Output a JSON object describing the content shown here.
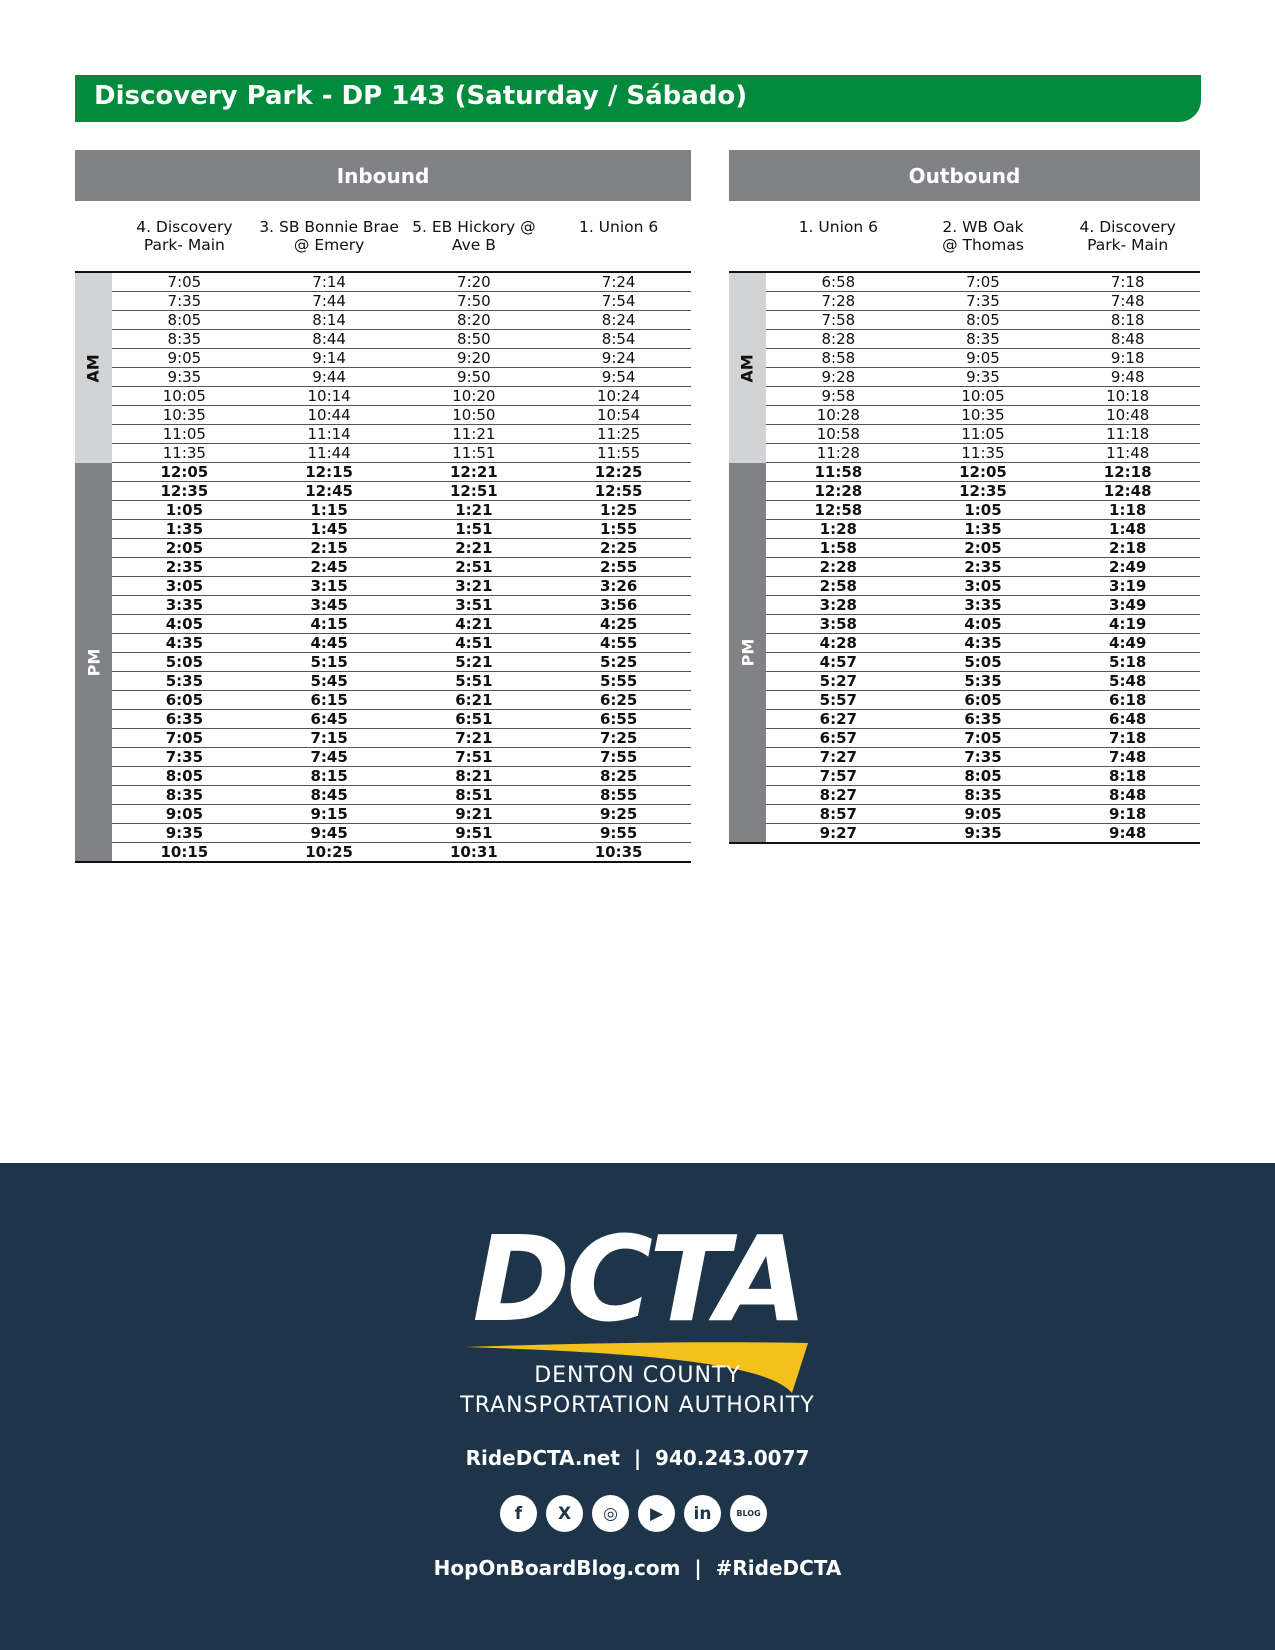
{
  "title": "Discovery Park - DP 143 (Saturday / Sábado)",
  "inbound": {
    "header": "Inbound",
    "columns": [
      "4. Discovery\nPark- Main",
      "3. SB Bonnie Brae\n@ Emery",
      "5. EB Hickory @\nAve B",
      "1. Union 6"
    ],
    "am_label": "AM",
    "pm_label": "PM",
    "am_rows": [
      [
        "7:05",
        "7:14",
        "7:20",
        "7:24"
      ],
      [
        "7:35",
        "7:44",
        "7:50",
        "7:54"
      ],
      [
        "8:05",
        "8:14",
        "8:20",
        "8:24"
      ],
      [
        "8:35",
        "8:44",
        "8:50",
        "8:54"
      ],
      [
        "9:05",
        "9:14",
        "9:20",
        "9:24"
      ],
      [
        "9:35",
        "9:44",
        "9:50",
        "9:54"
      ],
      [
        "10:05",
        "10:14",
        "10:20",
        "10:24"
      ],
      [
        "10:35",
        "10:44",
        "10:50",
        "10:54"
      ],
      [
        "11:05",
        "11:14",
        "11:21",
        "11:25"
      ],
      [
        "11:35",
        "11:44",
        "11:51",
        "11:55"
      ]
    ],
    "pm_rows": [
      [
        "12:05",
        "12:15",
        "12:21",
        "12:25"
      ],
      [
        "12:35",
        "12:45",
        "12:51",
        "12:55"
      ],
      [
        "1:05",
        "1:15",
        "1:21",
        "1:25"
      ],
      [
        "1:35",
        "1:45",
        "1:51",
        "1:55"
      ],
      [
        "2:05",
        "2:15",
        "2:21",
        "2:25"
      ],
      [
        "2:35",
        "2:45",
        "2:51",
        "2:55"
      ],
      [
        "3:05",
        "3:15",
        "3:21",
        "3:26"
      ],
      [
        "3:35",
        "3:45",
        "3:51",
        "3:56"
      ],
      [
        "4:05",
        "4:15",
        "4:21",
        "4:25"
      ],
      [
        "4:35",
        "4:45",
        "4:51",
        "4:55"
      ],
      [
        "5:05",
        "5:15",
        "5:21",
        "5:25"
      ],
      [
        "5:35",
        "5:45",
        "5:51",
        "5:55"
      ],
      [
        "6:05",
        "6:15",
        "6:21",
        "6:25"
      ],
      [
        "6:35",
        "6:45",
        "6:51",
        "6:55"
      ],
      [
        "7:05",
        "7:15",
        "7:21",
        "7:25"
      ],
      [
        "7:35",
        "7:45",
        "7:51",
        "7:55"
      ],
      [
        "8:05",
        "8:15",
        "8:21",
        "8:25"
      ],
      [
        "8:35",
        "8:45",
        "8:51",
        "8:55"
      ],
      [
        "9:05",
        "9:15",
        "9:21",
        "9:25"
      ],
      [
        "9:35",
        "9:45",
        "9:51",
        "9:55"
      ],
      [
        "10:15",
        "10:25",
        "10:31",
        "10:35"
      ]
    ],
    "pm_bold_from": 0
  },
  "outbound": {
    "header": "Outbound",
    "columns": [
      "1. Union 6",
      "2. WB Oak\n@ Thomas",
      "4. Discovery\nPark- Main"
    ],
    "am_label": "AM",
    "pm_label": "PM",
    "am_rows": [
      [
        "6:58",
        "7:05",
        "7:18"
      ],
      [
        "7:28",
        "7:35",
        "7:48"
      ],
      [
        "7:58",
        "8:05",
        "8:18"
      ],
      [
        "8:28",
        "8:35",
        "8:48"
      ],
      [
        "8:58",
        "9:05",
        "9:18"
      ],
      [
        "9:28",
        "9:35",
        "9:48"
      ],
      [
        "9:58",
        "10:05",
        "10:18"
      ],
      [
        "10:28",
        "10:35",
        "10:48"
      ],
      [
        "10:58",
        "11:05",
        "11:18"
      ],
      [
        "11:28",
        "11:35",
        "11:48"
      ]
    ],
    "pm_rows": [
      [
        "11:58",
        "12:05",
        "12:18"
      ],
      [
        "12:28",
        "12:35",
        "12:48"
      ],
      [
        "12:58",
        "1:05",
        "1:18"
      ],
      [
        "1:28",
        "1:35",
        "1:48"
      ],
      [
        "1:58",
        "2:05",
        "2:18"
      ],
      [
        "2:28",
        "2:35",
        "2:49"
      ],
      [
        "2:58",
        "3:05",
        "3:19"
      ],
      [
        "3:28",
        "3:35",
        "3:49"
      ],
      [
        "3:58",
        "4:05",
        "4:19"
      ],
      [
        "4:28",
        "4:35",
        "4:49"
      ],
      [
        "4:57",
        "5:05",
        "5:18"
      ],
      [
        "5:27",
        "5:35",
        "5:48"
      ],
      [
        "5:57",
        "6:05",
        "6:18"
      ],
      [
        "6:27",
        "6:35",
        "6:48"
      ],
      [
        "6:57",
        "7:05",
        "7:18"
      ],
      [
        "7:27",
        "7:35",
        "7:48"
      ],
      [
        "7:57",
        "8:05",
        "8:18"
      ],
      [
        "8:27",
        "8:35",
        "8:48"
      ],
      [
        "8:57",
        "9:05",
        "9:18"
      ],
      [
        "9:27",
        "9:35",
        "9:48"
      ]
    ]
  },
  "footer": {
    "logo_text": "DCTA",
    "org_line1": "DENTON COUNTY",
    "org_line2": "TRANSPORTATION AUTHORITY",
    "contact": "RideDCTA.net  |  940.243.0077",
    "socials": [
      {
        "name": "facebook-icon",
        "glyph": "f"
      },
      {
        "name": "x-icon",
        "glyph": "X"
      },
      {
        "name": "instagram-icon",
        "glyph": "◎"
      },
      {
        "name": "youtube-icon",
        "glyph": "▶"
      },
      {
        "name": "linkedin-icon",
        "glyph": "in"
      },
      {
        "name": "blog-icon",
        "glyph": "BLOG"
      }
    ],
    "blog_line": "HopOnBoardBlog.com  |  #RideDCTA"
  },
  "colors": {
    "title_green": "#028a3d",
    "header_gray": "#808285",
    "am_gray": "#d1d3d4",
    "footer_navy": "#1e3549",
    "logo_yellow": "#f3c01c"
  }
}
